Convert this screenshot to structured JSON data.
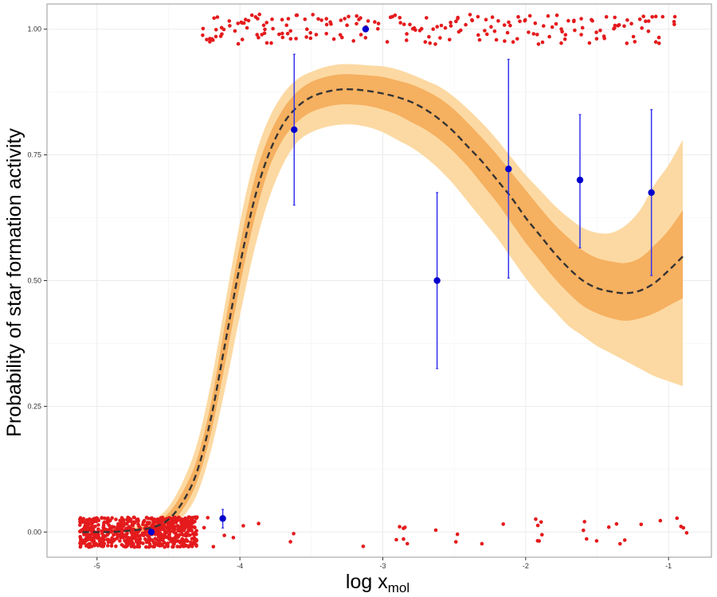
{
  "chart_data": {
    "type": "scatter",
    "xlabel": {
      "main": "log x",
      "subscript": "mol"
    },
    "ylabel": "Probability of star formation activity",
    "xlim": [
      -5.35,
      -0.7
    ],
    "ylim": [
      -0.05,
      1.05
    ],
    "x_ticks": [
      {
        "value": -5,
        "label": "-5"
      },
      {
        "value": -4,
        "label": "-4"
      },
      {
        "value": -3,
        "label": "-3"
      },
      {
        "value": -2,
        "label": "-2"
      },
      {
        "value": -1,
        "label": "-1"
      }
    ],
    "y_ticks": [
      {
        "value": 0,
        "label": "0.00"
      },
      {
        "value": 0.25,
        "label": "0.25"
      },
      {
        "value": 0.5,
        "label": "0.50"
      },
      {
        "value": 0.75,
        "label": "0.75"
      },
      {
        "value": 1,
        "label": "1.00"
      }
    ],
    "grid": true,
    "colors": {
      "outer_band": "#fcd9a2",
      "inner_band": "#f5b060",
      "fit_line": "#333333",
      "observations": "#e41a1c",
      "binned_points": "#0000cc",
      "error_bars": "#3333ee",
      "panel_border": "#999999",
      "grid": "#ebebeb"
    },
    "fit_curve": {
      "x": [
        -5.1,
        -5.0,
        -4.9,
        -4.8,
        -4.7,
        -4.6,
        -4.5,
        -4.4,
        -4.3,
        -4.2,
        -4.1,
        -4.0,
        -3.9,
        -3.8,
        -3.7,
        -3.6,
        -3.5,
        -3.4,
        -3.3,
        -3.2,
        -3.1,
        -3.0,
        -2.9,
        -2.8,
        -2.7,
        -2.6,
        -2.5,
        -2.4,
        -2.3,
        -2.2,
        -2.1,
        -2.0,
        -1.9,
        -1.8,
        -1.7,
        -1.6,
        -1.5,
        -1.4,
        -1.3,
        -1.2,
        -1.1,
        -1.0,
        -0.9
      ],
      "y": [
        0.0,
        0.0,
        0.0,
        0.002,
        0.005,
        0.01,
        0.025,
        0.06,
        0.12,
        0.23,
        0.38,
        0.53,
        0.66,
        0.75,
        0.81,
        0.845,
        0.865,
        0.875,
        0.88,
        0.88,
        0.877,
        0.872,
        0.865,
        0.855,
        0.84,
        0.82,
        0.795,
        0.765,
        0.735,
        0.7,
        0.665,
        0.625,
        0.59,
        0.555,
        0.525,
        0.5,
        0.485,
        0.478,
        0.475,
        0.48,
        0.495,
        0.52,
        0.548
      ],
      "inner_lower": [
        0.0,
        0.0,
        0.0,
        0.0,
        0.002,
        0.005,
        0.015,
        0.045,
        0.1,
        0.2,
        0.34,
        0.49,
        0.62,
        0.72,
        0.78,
        0.815,
        0.835,
        0.845,
        0.85,
        0.85,
        0.847,
        0.84,
        0.83,
        0.815,
        0.8,
        0.78,
        0.755,
        0.725,
        0.69,
        0.655,
        0.615,
        0.575,
        0.54,
        0.505,
        0.475,
        0.45,
        0.435,
        0.425,
        0.42,
        0.425,
        0.435,
        0.45,
        0.465
      ],
      "inner_upper": [
        0.0,
        0.0,
        0.002,
        0.005,
        0.009,
        0.017,
        0.038,
        0.08,
        0.145,
        0.26,
        0.42,
        0.57,
        0.7,
        0.785,
        0.84,
        0.875,
        0.895,
        0.905,
        0.91,
        0.91,
        0.908,
        0.905,
        0.898,
        0.89,
        0.878,
        0.862,
        0.84,
        0.812,
        0.782,
        0.75,
        0.715,
        0.68,
        0.645,
        0.612,
        0.585,
        0.56,
        0.545,
        0.538,
        0.535,
        0.545,
        0.57,
        0.6,
        0.64
      ],
      "outer_lower": [
        0.0,
        0.0,
        0.0,
        0.0,
        0.0,
        0.002,
        0.008,
        0.03,
        0.075,
        0.165,
        0.29,
        0.43,
        0.56,
        0.66,
        0.73,
        0.775,
        0.795,
        0.805,
        0.81,
        0.81,
        0.805,
        0.795,
        0.78,
        0.765,
        0.745,
        0.72,
        0.69,
        0.655,
        0.62,
        0.585,
        0.545,
        0.505,
        0.47,
        0.44,
        0.41,
        0.39,
        0.37,
        0.355,
        0.34,
        0.325,
        0.31,
        0.3,
        0.29
      ],
      "outer_upper": [
        0.0,
        0.002,
        0.004,
        0.008,
        0.014,
        0.025,
        0.05,
        0.1,
        0.175,
        0.3,
        0.46,
        0.615,
        0.74,
        0.82,
        0.87,
        0.9,
        0.915,
        0.925,
        0.93,
        0.93,
        0.928,
        0.926,
        0.92,
        0.91,
        0.898,
        0.885,
        0.865,
        0.84,
        0.812,
        0.78,
        0.745,
        0.71,
        0.68,
        0.65,
        0.625,
        0.605,
        0.595,
        0.595,
        0.61,
        0.64,
        0.69,
        0.73,
        0.78
      ]
    },
    "binned_points": [
      {
        "x": -4.62,
        "y": 0.0,
        "lo": 0.0,
        "hi": 0.0
      },
      {
        "x": -4.12,
        "y": 0.027,
        "lo": 0.008,
        "hi": 0.045
      },
      {
        "x": -3.62,
        "y": 0.8,
        "lo": 0.65,
        "hi": 0.95
      },
      {
        "x": -3.12,
        "y": 1.0,
        "lo": 1.0,
        "hi": 1.0
      },
      {
        "x": -2.62,
        "y": 0.5,
        "lo": 0.325,
        "hi": 0.675
      },
      {
        "x": -2.12,
        "y": 0.722,
        "lo": 0.505,
        "hi": 0.94
      },
      {
        "x": -1.62,
        "y": 0.7,
        "lo": 0.565,
        "hi": 0.83
      },
      {
        "x": -1.12,
        "y": 0.675,
        "lo": 0.51,
        "hi": 0.84
      }
    ],
    "observations": {
      "description_counts": "jittered binary outcomes; dense cluster at y=0 near x=-5.1..-4.3, sparse points elsewhere",
      "zero_dense": {
        "x_range": [
          -5.12,
          -4.3
        ],
        "count": 700
      },
      "zero_sparse_x": [
        -4.25,
        -4.22,
        -4.18,
        -4.1,
        -4.05,
        -3.98,
        -3.86,
        -3.64,
        -3.63,
        -3.13,
        -2.9,
        -2.88,
        -2.86,
        -2.85,
        -2.84,
        -2.82,
        -2.62,
        -2.49,
        -2.48,
        -2.3,
        -2.15,
        -1.93,
        -1.92,
        -1.91,
        -1.9,
        -1.89,
        -1.88,
        -1.6,
        -1.58,
        -1.57,
        -1.5,
        -1.42,
        -1.37,
        -1.33,
        -1.3,
        -1.2,
        -1.05,
        -0.95,
        -0.92,
        -0.9,
        -0.88
      ],
      "one_x": [
        -4.25,
        -4.2,
        -4.18,
        -4.15,
        -4.12,
        -4.05,
        -4.0,
        -3.98,
        -3.95,
        -3.9,
        -3.87,
        -3.85,
        -3.8,
        -3.77,
        -3.72,
        -3.68,
        -3.65,
        -3.6,
        -3.55,
        -3.5,
        -3.45,
        -3.4,
        -3.35,
        -3.3,
        -3.25,
        -3.2,
        -3.15,
        -3.1,
        -3.05,
        -2.95,
        -2.9,
        -2.85,
        -2.8,
        -2.75,
        -2.7,
        -2.65,
        -2.6,
        -2.55,
        -2.5,
        -2.45,
        -2.4,
        -2.35,
        -2.3,
        -2.25,
        -2.2,
        -2.15,
        -2.1,
        -2.05,
        -2.0,
        -1.95,
        -1.9,
        -1.85,
        -1.8,
        -1.75,
        -1.7,
        -1.65,
        -1.6,
        -1.55,
        -1.5,
        -1.45,
        -1.4,
        -1.35,
        -1.3,
        -1.25,
        -1.2,
        -1.15,
        -1.1,
        -1.05,
        -0.95
      ]
    }
  }
}
